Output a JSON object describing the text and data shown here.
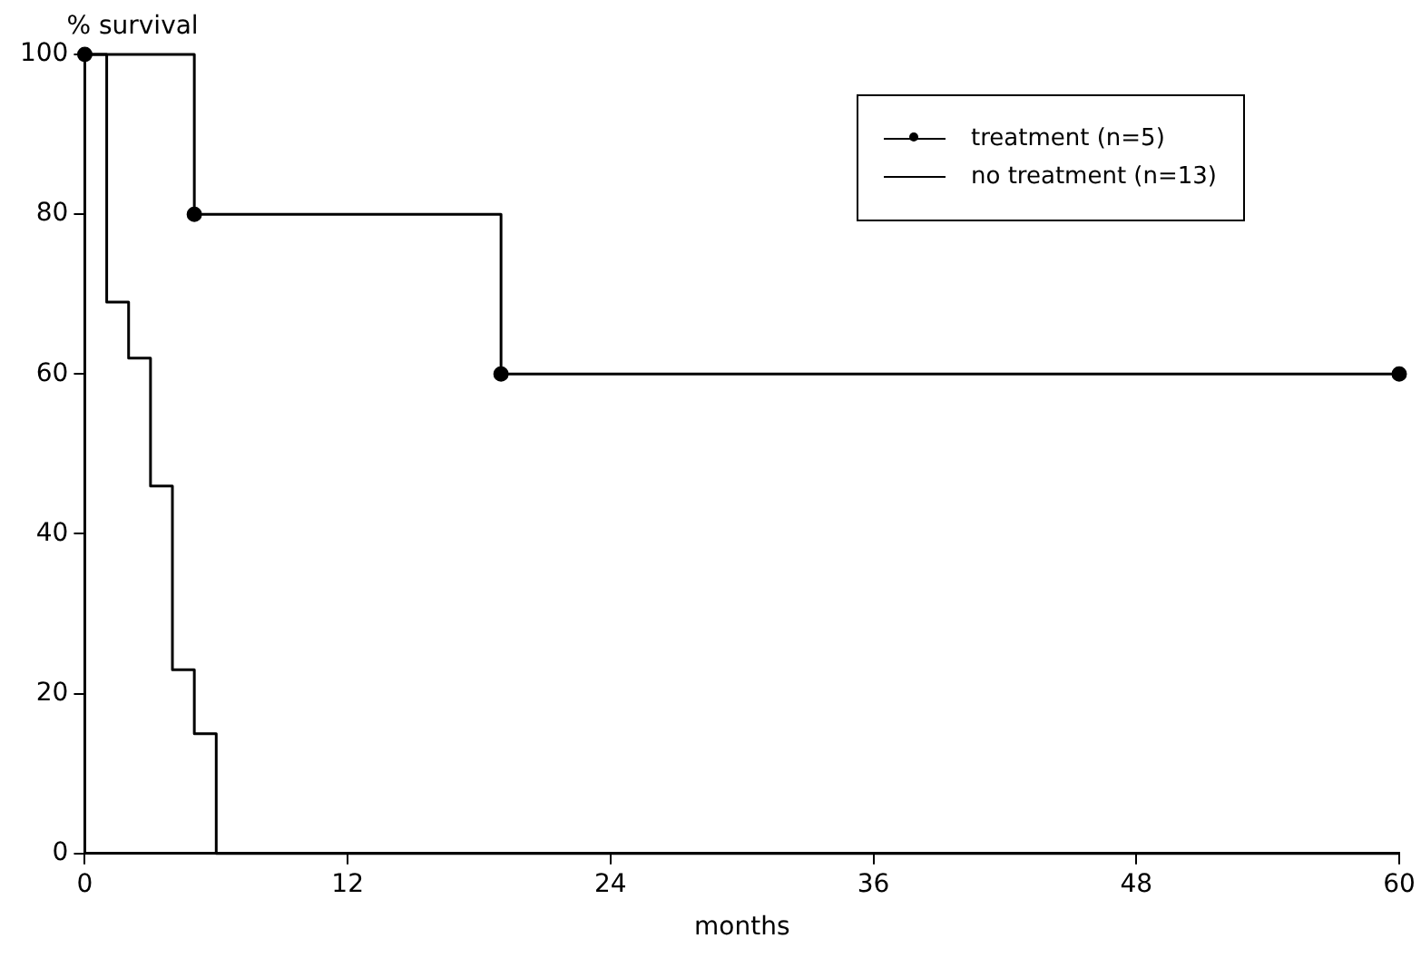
{
  "chart_data": {
    "type": "step",
    "xlabel": "months",
    "ylabel": "% survival",
    "xlim": [
      0,
      60
    ],
    "xticks": [
      0,
      12,
      24,
      36,
      48,
      60
    ],
    "ylim": [
      0,
      100
    ],
    "yticks": [
      0,
      20,
      40,
      60,
      80,
      100
    ],
    "grid": false,
    "legend": "top right",
    "line_style": "solid",
    "series": [
      {
        "name": "treatment (n=5)",
        "color": "#000000",
        "marker": "circle",
        "x": [
          0,
          5,
          19,
          60
        ],
        "values": [
          100,
          80,
          60,
          60
        ]
      },
      {
        "name": "no treatment (n=13)",
        "color": "#000000",
        "marker": "none",
        "x": [
          0,
          1,
          2,
          3,
          4,
          5,
          6,
          60
        ],
        "values": [
          100,
          69,
          62,
          46,
          23,
          15,
          0,
          0
        ]
      }
    ]
  }
}
